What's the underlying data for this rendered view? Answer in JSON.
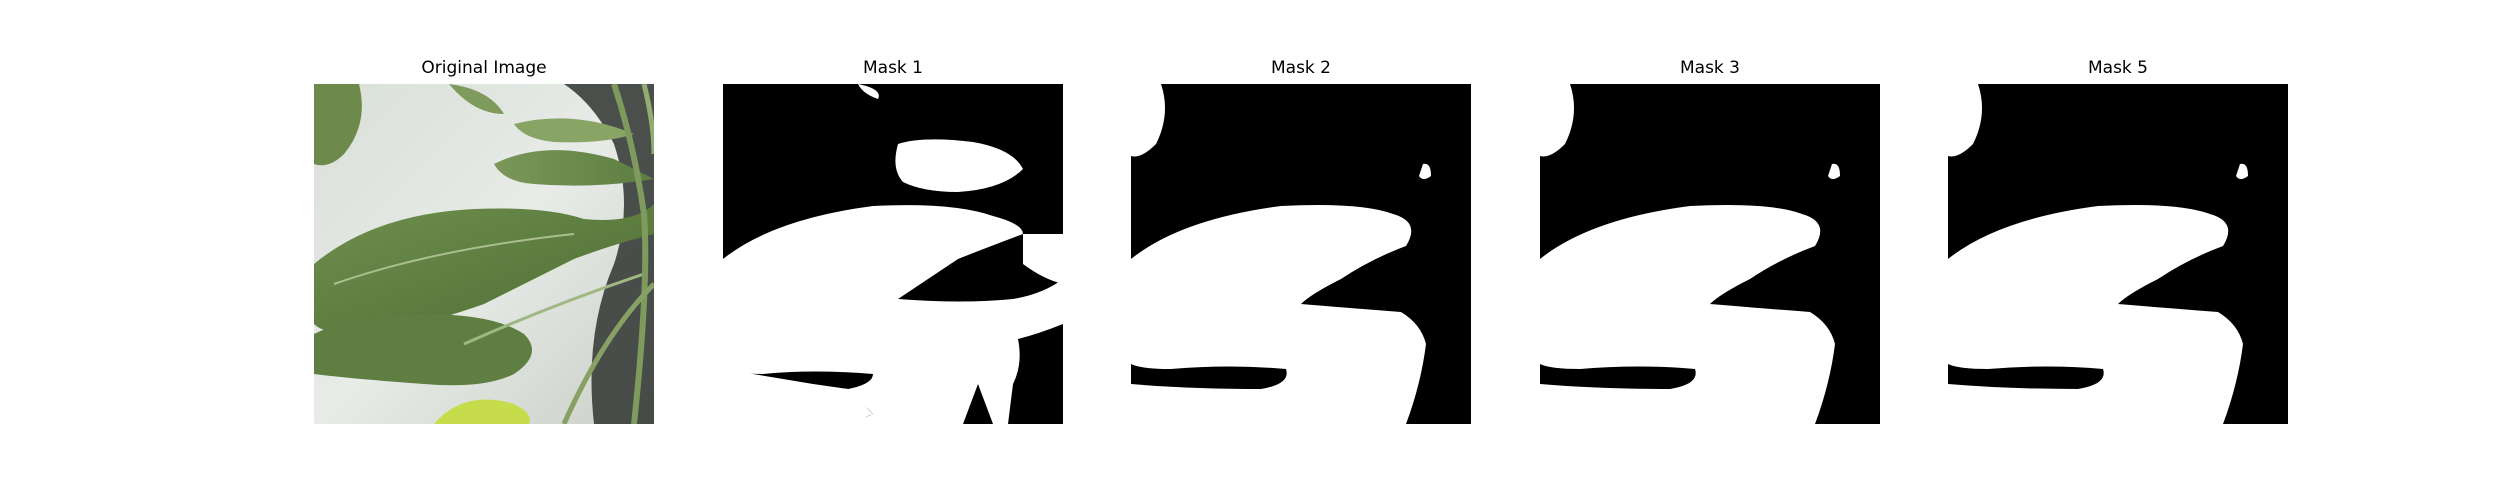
{
  "panels": [
    {
      "title": "Original Image",
      "kind": "photo"
    },
    {
      "title": "Mask 1",
      "kind": "mask"
    },
    {
      "title": "Mask 2",
      "kind": "mask"
    },
    {
      "title": "Mask 3",
      "kind": "mask"
    },
    {
      "title": "Mask 5",
      "kind": "mask"
    }
  ],
  "colors": {
    "mask_foreground": "#ffffff",
    "mask_background": "#000000"
  }
}
